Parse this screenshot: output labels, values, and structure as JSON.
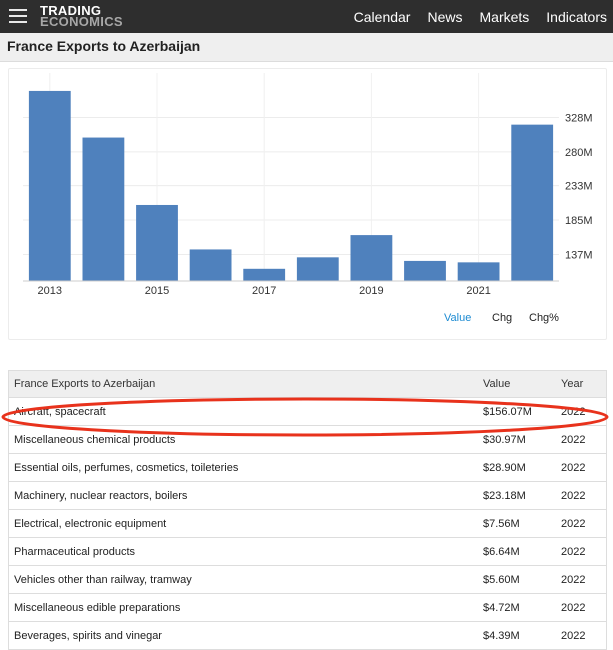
{
  "site": {
    "logo_line1": "TRADING",
    "logo_line2": "ECONOMICS",
    "nav": [
      "Calendar",
      "News",
      "Markets",
      "Indicators"
    ]
  },
  "page": {
    "title": "France Exports to Azerbaijan"
  },
  "chart_data": {
    "type": "bar",
    "categories": [
      "2013",
      "2014",
      "2015",
      "2016",
      "2017",
      "2018",
      "2019",
      "2020",
      "2021",
      "2022"
    ],
    "values": [
      365,
      300,
      206,
      144,
      117,
      133,
      164,
      128,
      126,
      318
    ],
    "x_tick_labels": [
      "2013",
      "2015",
      "2017",
      "2019",
      "2021"
    ],
    "y_tick_labels": [
      "137M",
      "185M",
      "233M",
      "280M",
      "328M"
    ],
    "y_ticks": [
      137,
      185,
      233,
      280,
      328
    ],
    "ylim": [
      100,
      390
    ],
    "y_axis_side": "right",
    "grid": true,
    "bar_color": "#4f81bd",
    "accent_color": "#1d8bd2"
  },
  "chart_tabs": [
    {
      "label": "Value",
      "active": true
    },
    {
      "label": "Chg",
      "active": false
    },
    {
      "label": "Chg%",
      "active": false
    }
  ],
  "table": {
    "headers": [
      "France Exports to Azerbaijan",
      "Value",
      "Year"
    ],
    "rows": [
      {
        "name": "Aircraft, spacecraft",
        "value": "$156.07M",
        "year": "2022"
      },
      {
        "name": "Miscellaneous chemical products",
        "value": "$30.97M",
        "year": "2022"
      },
      {
        "name": "Essential oils, perfumes, cosmetics, toileteries",
        "value": "$28.90M",
        "year": "2022"
      },
      {
        "name": "Machinery, nuclear reactors, boilers",
        "value": "$23.18M",
        "year": "2022"
      },
      {
        "name": "Electrical, electronic equipment",
        "value": "$7.56M",
        "year": "2022"
      },
      {
        "name": "Pharmaceutical products",
        "value": "$6.64M",
        "year": "2022"
      },
      {
        "name": "Vehicles other than railway, tramway",
        "value": "$5.60M",
        "year": "2022"
      },
      {
        "name": "Miscellaneous edible preparations",
        "value": "$4.72M",
        "year": "2022"
      },
      {
        "name": "Beverages, spirits and vinegar",
        "value": "$4.39M",
        "year": "2022"
      }
    ]
  },
  "annotation": {
    "highlight_color": "#e8321c"
  }
}
